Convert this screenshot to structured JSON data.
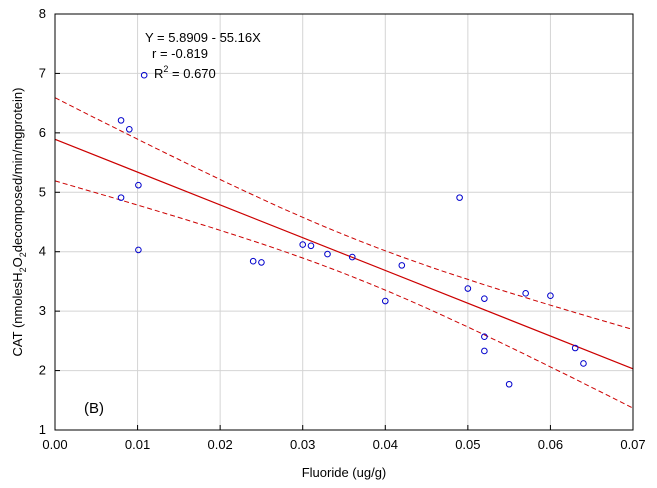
{
  "chart_data": {
    "type": "scatter",
    "panel_label": "(B)",
    "xlabel": "Fluoride (ug/g)",
    "ylabel_parts": [
      "CAT (nmolesH",
      "2",
      "O",
      "2",
      "decomposed/min/mgprotein)"
    ],
    "xlim": [
      0,
      0.07
    ],
    "ylim": [
      1,
      8
    ],
    "x_ticks": [
      0.0,
      0.01,
      0.02,
      0.03,
      0.04,
      0.05,
      0.06,
      0.07
    ],
    "x_tick_labels": [
      "0.00",
      "0.01",
      "0.02",
      "0.03",
      "0.04",
      "0.05",
      "0.06",
      "0.07"
    ],
    "y_ticks": [
      1,
      2,
      3,
      4,
      5,
      6,
      7,
      8
    ],
    "y_tick_labels": [
      "1",
      "2",
      "3",
      "4",
      "5",
      "6",
      "7",
      "8"
    ],
    "annotations": {
      "equation": "Y = 5.8909 - 55.16X",
      "r": "r = -0.819",
      "r2_prefix": "R",
      "r2_sup": "2",
      "r2_suffix": " = 0.670"
    },
    "regression": {
      "intercept": 5.8909,
      "slope": -55.16,
      "confidence": 0.95
    },
    "points": [
      {
        "x": 0.0108,
        "y": 6.97
      },
      {
        "x": 0.008,
        "y": 6.21
      },
      {
        "x": 0.009,
        "y": 6.06
      },
      {
        "x": 0.0101,
        "y": 5.12
      },
      {
        "x": 0.008,
        "y": 4.91
      },
      {
        "x": 0.0101,
        "y": 4.03
      },
      {
        "x": 0.024,
        "y": 3.84
      },
      {
        "x": 0.025,
        "y": 3.82
      },
      {
        "x": 0.03,
        "y": 4.12
      },
      {
        "x": 0.031,
        "y": 4.1
      },
      {
        "x": 0.033,
        "y": 3.96
      },
      {
        "x": 0.036,
        "y": 3.91
      },
      {
        "x": 0.04,
        "y": 3.17
      },
      {
        "x": 0.042,
        "y": 3.77
      },
      {
        "x": 0.049,
        "y": 4.91
      },
      {
        "x": 0.05,
        "y": 3.38
      },
      {
        "x": 0.052,
        "y": 3.21
      },
      {
        "x": 0.052,
        "y": 2.57
      },
      {
        "x": 0.052,
        "y": 2.33
      },
      {
        "x": 0.055,
        "y": 1.77
      },
      {
        "x": 0.057,
        "y": 3.3
      },
      {
        "x": 0.06,
        "y": 3.26
      },
      {
        "x": 0.063,
        "y": 2.38
      },
      {
        "x": 0.064,
        "y": 2.12
      }
    ],
    "colors": {
      "points": "#0000cc",
      "regression_line": "#cc0000",
      "confidence_band": "#cc0000",
      "axes": "#000000"
    }
  }
}
